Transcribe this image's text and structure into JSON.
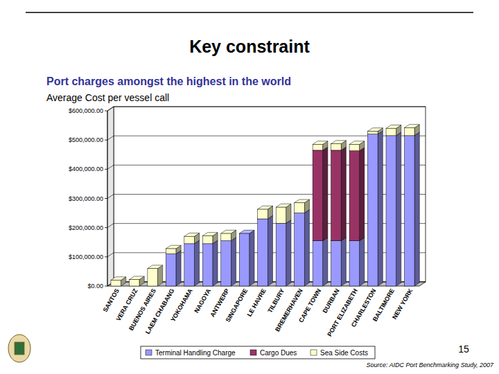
{
  "chart_data": {
    "type": "bar",
    "title": "Key constraint",
    "subtitle": "Port charges amongst the highest in the world",
    "y_label": "Average Cost per vessel call",
    "annotations": [
      "15",
      "Source: AIDC Port Benchmarking Study, 2007"
    ],
    "categories": [
      "SANTOS",
      "VERA CRUZ",
      "BUENOS AIRES",
      "LAEM CHABANG",
      "YOKOHAMA",
      "NAGOYA",
      "ANTWERP",
      "SINGAPORE",
      "LE HAVRE",
      "TILBURY",
      "BREMERHAVEN",
      "CAPE TOWN",
      "DURBAN",
      "PORT ELIZABETH",
      "CHARLESTON",
      "BALTIMORE",
      "NEW YORK"
    ],
    "series": [
      {
        "name": "Terminal Handling Charge",
        "color": "#9999ff",
        "values": [
          0,
          0,
          0,
          110000,
          145000,
          145000,
          155000,
          180000,
          230000,
          215000,
          250000,
          155000,
          155000,
          155000,
          520000,
          515000,
          515000
        ]
      },
      {
        "name": "Cargo Dues",
        "color": "#993366",
        "values": [
          0,
          0,
          0,
          0,
          0,
          0,
          0,
          0,
          0,
          0,
          0,
          310000,
          310000,
          308000,
          0,
          0,
          0
        ]
      },
      {
        "name": "Sea Side Costs",
        "color": "#ffffcc",
        "values": [
          20000,
          22000,
          60000,
          18000,
          25000,
          27000,
          25000,
          0,
          33000,
          55000,
          35000,
          20000,
          22000,
          22000,
          10000,
          25000,
          27000
        ]
      }
    ],
    "stacked": true,
    "grid": true,
    "legend": "bottom",
    "ylim": [
      0,
      600000
    ],
    "yticks": [
      {
        "value": 0,
        "label": "$0.00"
      },
      {
        "value": 100000,
        "label": "$100,000.00"
      },
      {
        "value": 200000,
        "label": "$200,000.00"
      },
      {
        "value": 300000,
        "label": "$300,000.00"
      },
      {
        "value": 400000,
        "label": "$400,000.00"
      },
      {
        "value": 500000,
        "label": "$500,000.00"
      },
      {
        "value": 600000,
        "label": "$600,000.00"
      }
    ]
  }
}
